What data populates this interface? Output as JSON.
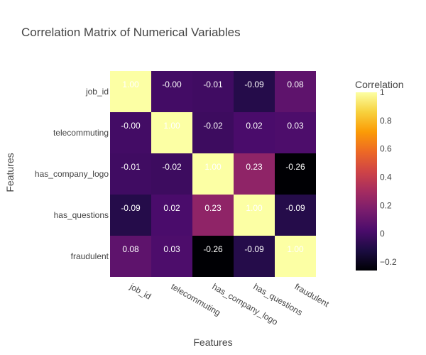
{
  "chart_data": {
    "type": "heatmap",
    "title": "Correlation Matrix of Numerical Variables",
    "xlabel": "Features",
    "ylabel": "Features",
    "x_categories": [
      "job_id",
      "telecommuting",
      "has_company_logo",
      "has_questions",
      "fraudulent"
    ],
    "y_categories": [
      "job_id",
      "telecommuting",
      "has_company_logo",
      "has_questions",
      "fraudulent"
    ],
    "values": [
      [
        1.0,
        -0.0,
        -0.01,
        -0.09,
        0.08
      ],
      [
        -0.0,
        1.0,
        -0.02,
        0.02,
        0.03
      ],
      [
        -0.01,
        -0.02,
        1.0,
        0.23,
        -0.26
      ],
      [
        -0.09,
        0.02,
        0.23,
        1.0,
        -0.09
      ],
      [
        0.08,
        0.03,
        -0.26,
        -0.09,
        1.0
      ]
    ],
    "cell_labels": [
      [
        "1.00",
        "-0.00",
        "-0.01",
        "-0.09",
        "0.08"
      ],
      [
        "-0.00",
        "1.00",
        "-0.02",
        "0.02",
        "0.03"
      ],
      [
        "-0.01",
        "-0.02",
        "1.00",
        "0.23",
        "-0.26"
      ],
      [
        "-0.09",
        "0.02",
        "0.23",
        "1.00",
        "-0.09"
      ],
      [
        "0.08",
        "0.03",
        "-0.26",
        "-0.09",
        "1.00"
      ]
    ],
    "colorscale": "Inferno",
    "colorscale_stops": [
      "#000004",
      "#1b0c41",
      "#4a0c6b",
      "#781c6d",
      "#a52c60",
      "#cf4446",
      "#ed6925",
      "#fb9b06",
      "#f7d13d",
      "#fcffa4"
    ],
    "colorbar": {
      "title": "Correlation",
      "range": [
        -0.26,
        1.0
      ],
      "ticks": [
        -0.2,
        0,
        0.2,
        0.4,
        0.6,
        0.8,
        1
      ],
      "tick_labels": [
        "−0.2",
        "0",
        "0.2",
        "0.4",
        "0.6",
        "0.8",
        "1"
      ]
    }
  }
}
